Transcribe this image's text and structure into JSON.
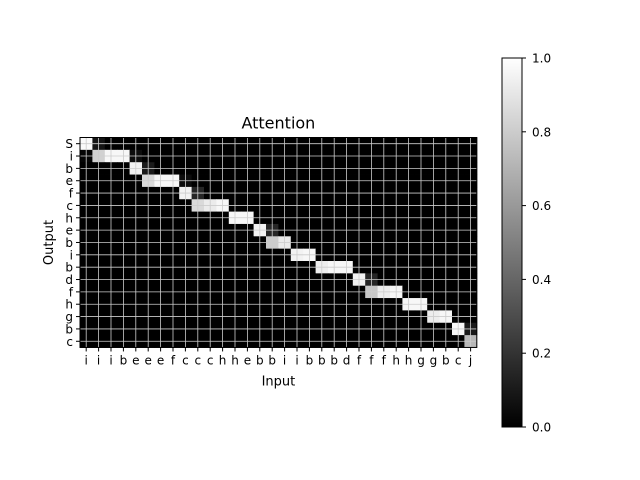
{
  "chart_data": {
    "type": "heatmap",
    "title": "Attention",
    "xlabel": "Input",
    "ylabel": "Output",
    "x_categories": [
      "i",
      "i",
      "i",
      "b",
      "e",
      "e",
      "e",
      "f",
      "c",
      "c",
      "c",
      "h",
      "h",
      "e",
      "b",
      "b",
      "i",
      "i",
      "b",
      "b",
      "b",
      "d",
      "f",
      "f",
      "f",
      "h",
      "h",
      "g",
      "g",
      "b",
      "c",
      "j"
    ],
    "y_categories": [
      "S",
      "i",
      "b",
      "e",
      "f",
      "c",
      "h",
      "e",
      "b",
      "i",
      "b",
      "d",
      "f",
      "h",
      "g",
      "b",
      "c"
    ],
    "values": [
      [
        0.98,
        0.08,
        0,
        0,
        0,
        0,
        0,
        0,
        0,
        0,
        0,
        0,
        0,
        0,
        0,
        0,
        0,
        0,
        0,
        0,
        0,
        0,
        0,
        0,
        0,
        0,
        0,
        0,
        0,
        0,
        0,
        0
      ],
      [
        0.02,
        0.82,
        0.97,
        0.97,
        0.05,
        0,
        0,
        0,
        0,
        0,
        0,
        0,
        0,
        0,
        0,
        0,
        0,
        0,
        0,
        0,
        0,
        0,
        0,
        0,
        0,
        0,
        0,
        0,
        0,
        0,
        0,
        0
      ],
      [
        0,
        0,
        0,
        0,
        0.95,
        0.1,
        0,
        0,
        0,
        0,
        0,
        0,
        0,
        0,
        0,
        0,
        0,
        0,
        0,
        0,
        0,
        0,
        0,
        0,
        0,
        0,
        0,
        0,
        0,
        0,
        0,
        0
      ],
      [
        0,
        0,
        0,
        0,
        0,
        0.85,
        0.97,
        0.97,
        0.05,
        0,
        0,
        0,
        0,
        0,
        0,
        0,
        0,
        0,
        0,
        0,
        0,
        0,
        0,
        0,
        0,
        0,
        0,
        0,
        0,
        0,
        0,
        0
      ],
      [
        0,
        0,
        0,
        0,
        0,
        0,
        0,
        0,
        0.95,
        0.15,
        0,
        0,
        0,
        0,
        0,
        0,
        0,
        0,
        0,
        0,
        0,
        0,
        0,
        0,
        0,
        0,
        0,
        0,
        0,
        0,
        0,
        0
      ],
      [
        0,
        0,
        0,
        0,
        0,
        0,
        0,
        0,
        0,
        0.85,
        0.92,
        0.97,
        0,
        0,
        0,
        0,
        0,
        0,
        0,
        0,
        0,
        0,
        0,
        0,
        0,
        0,
        0,
        0,
        0,
        0,
        0,
        0
      ],
      [
        0,
        0,
        0,
        0,
        0,
        0,
        0,
        0,
        0,
        0,
        0,
        0,
        0.97,
        0.97,
        0,
        0,
        0,
        0,
        0,
        0,
        0,
        0,
        0,
        0,
        0,
        0,
        0,
        0,
        0,
        0,
        0,
        0
      ],
      [
        0,
        0,
        0,
        0,
        0,
        0,
        0,
        0,
        0,
        0,
        0,
        0,
        0,
        0,
        0.95,
        0.15,
        0,
        0,
        0,
        0,
        0,
        0,
        0,
        0,
        0,
        0,
        0,
        0,
        0,
        0,
        0,
        0
      ],
      [
        0,
        0,
        0,
        0,
        0,
        0,
        0,
        0,
        0,
        0,
        0,
        0,
        0,
        0,
        0,
        0.8,
        0.92,
        0,
        0,
        0,
        0,
        0,
        0,
        0,
        0,
        0,
        0,
        0,
        0,
        0,
        0,
        0
      ],
      [
        0,
        0,
        0,
        0,
        0,
        0,
        0,
        0,
        0,
        0,
        0,
        0,
        0,
        0,
        0,
        0,
        0,
        0.95,
        0.97,
        0,
        0,
        0,
        0,
        0,
        0,
        0,
        0,
        0,
        0,
        0,
        0,
        0
      ],
      [
        0,
        0,
        0,
        0,
        0,
        0,
        0,
        0,
        0,
        0,
        0,
        0,
        0,
        0,
        0,
        0,
        0,
        0,
        0,
        0.93,
        0.97,
        0.97,
        0,
        0,
        0,
        0,
        0,
        0,
        0,
        0,
        0,
        0
      ],
      [
        0,
        0,
        0,
        0,
        0,
        0,
        0,
        0,
        0,
        0,
        0,
        0,
        0,
        0,
        0,
        0,
        0,
        0,
        0,
        0,
        0,
        0,
        0.95,
        0.15,
        0,
        0,
        0,
        0,
        0,
        0,
        0,
        0
      ],
      [
        0,
        0,
        0,
        0,
        0,
        0,
        0,
        0,
        0,
        0,
        0,
        0,
        0,
        0,
        0,
        0,
        0,
        0,
        0,
        0,
        0,
        0,
        0,
        0.78,
        0.93,
        0.97,
        0,
        0,
        0,
        0,
        0,
        0
      ],
      [
        0,
        0,
        0,
        0,
        0,
        0,
        0,
        0,
        0,
        0,
        0,
        0,
        0,
        0,
        0,
        0,
        0,
        0,
        0,
        0,
        0,
        0,
        0,
        0,
        0,
        0,
        0.97,
        0.97,
        0,
        0,
        0,
        0
      ],
      [
        0,
        0,
        0,
        0,
        0,
        0,
        0,
        0,
        0,
        0,
        0,
        0,
        0,
        0,
        0,
        0,
        0,
        0,
        0,
        0,
        0,
        0,
        0,
        0,
        0,
        0,
        0,
        0,
        0.93,
        0.97,
        0,
        0
      ],
      [
        0,
        0,
        0,
        0,
        0,
        0,
        0,
        0,
        0,
        0,
        0,
        0,
        0,
        0,
        0,
        0,
        0,
        0,
        0,
        0,
        0,
        0,
        0,
        0,
        0,
        0,
        0,
        0,
        0,
        0,
        0.97,
        0.1
      ],
      [
        0,
        0,
        0,
        0,
        0,
        0,
        0,
        0,
        0,
        0,
        0,
        0,
        0,
        0,
        0,
        0,
        0,
        0,
        0,
        0,
        0,
        0,
        0,
        0,
        0,
        0,
        0,
        0,
        0,
        0,
        0,
        0.72
      ]
    ],
    "colormap": "gray",
    "vmin": 0.0,
    "vmax": 1.0,
    "colorbar_ticks": [
      "0.0",
      "0.2",
      "0.4",
      "0.6",
      "0.8",
      "1.0"
    ],
    "grid": true,
    "grid_color": "#cccccc"
  }
}
